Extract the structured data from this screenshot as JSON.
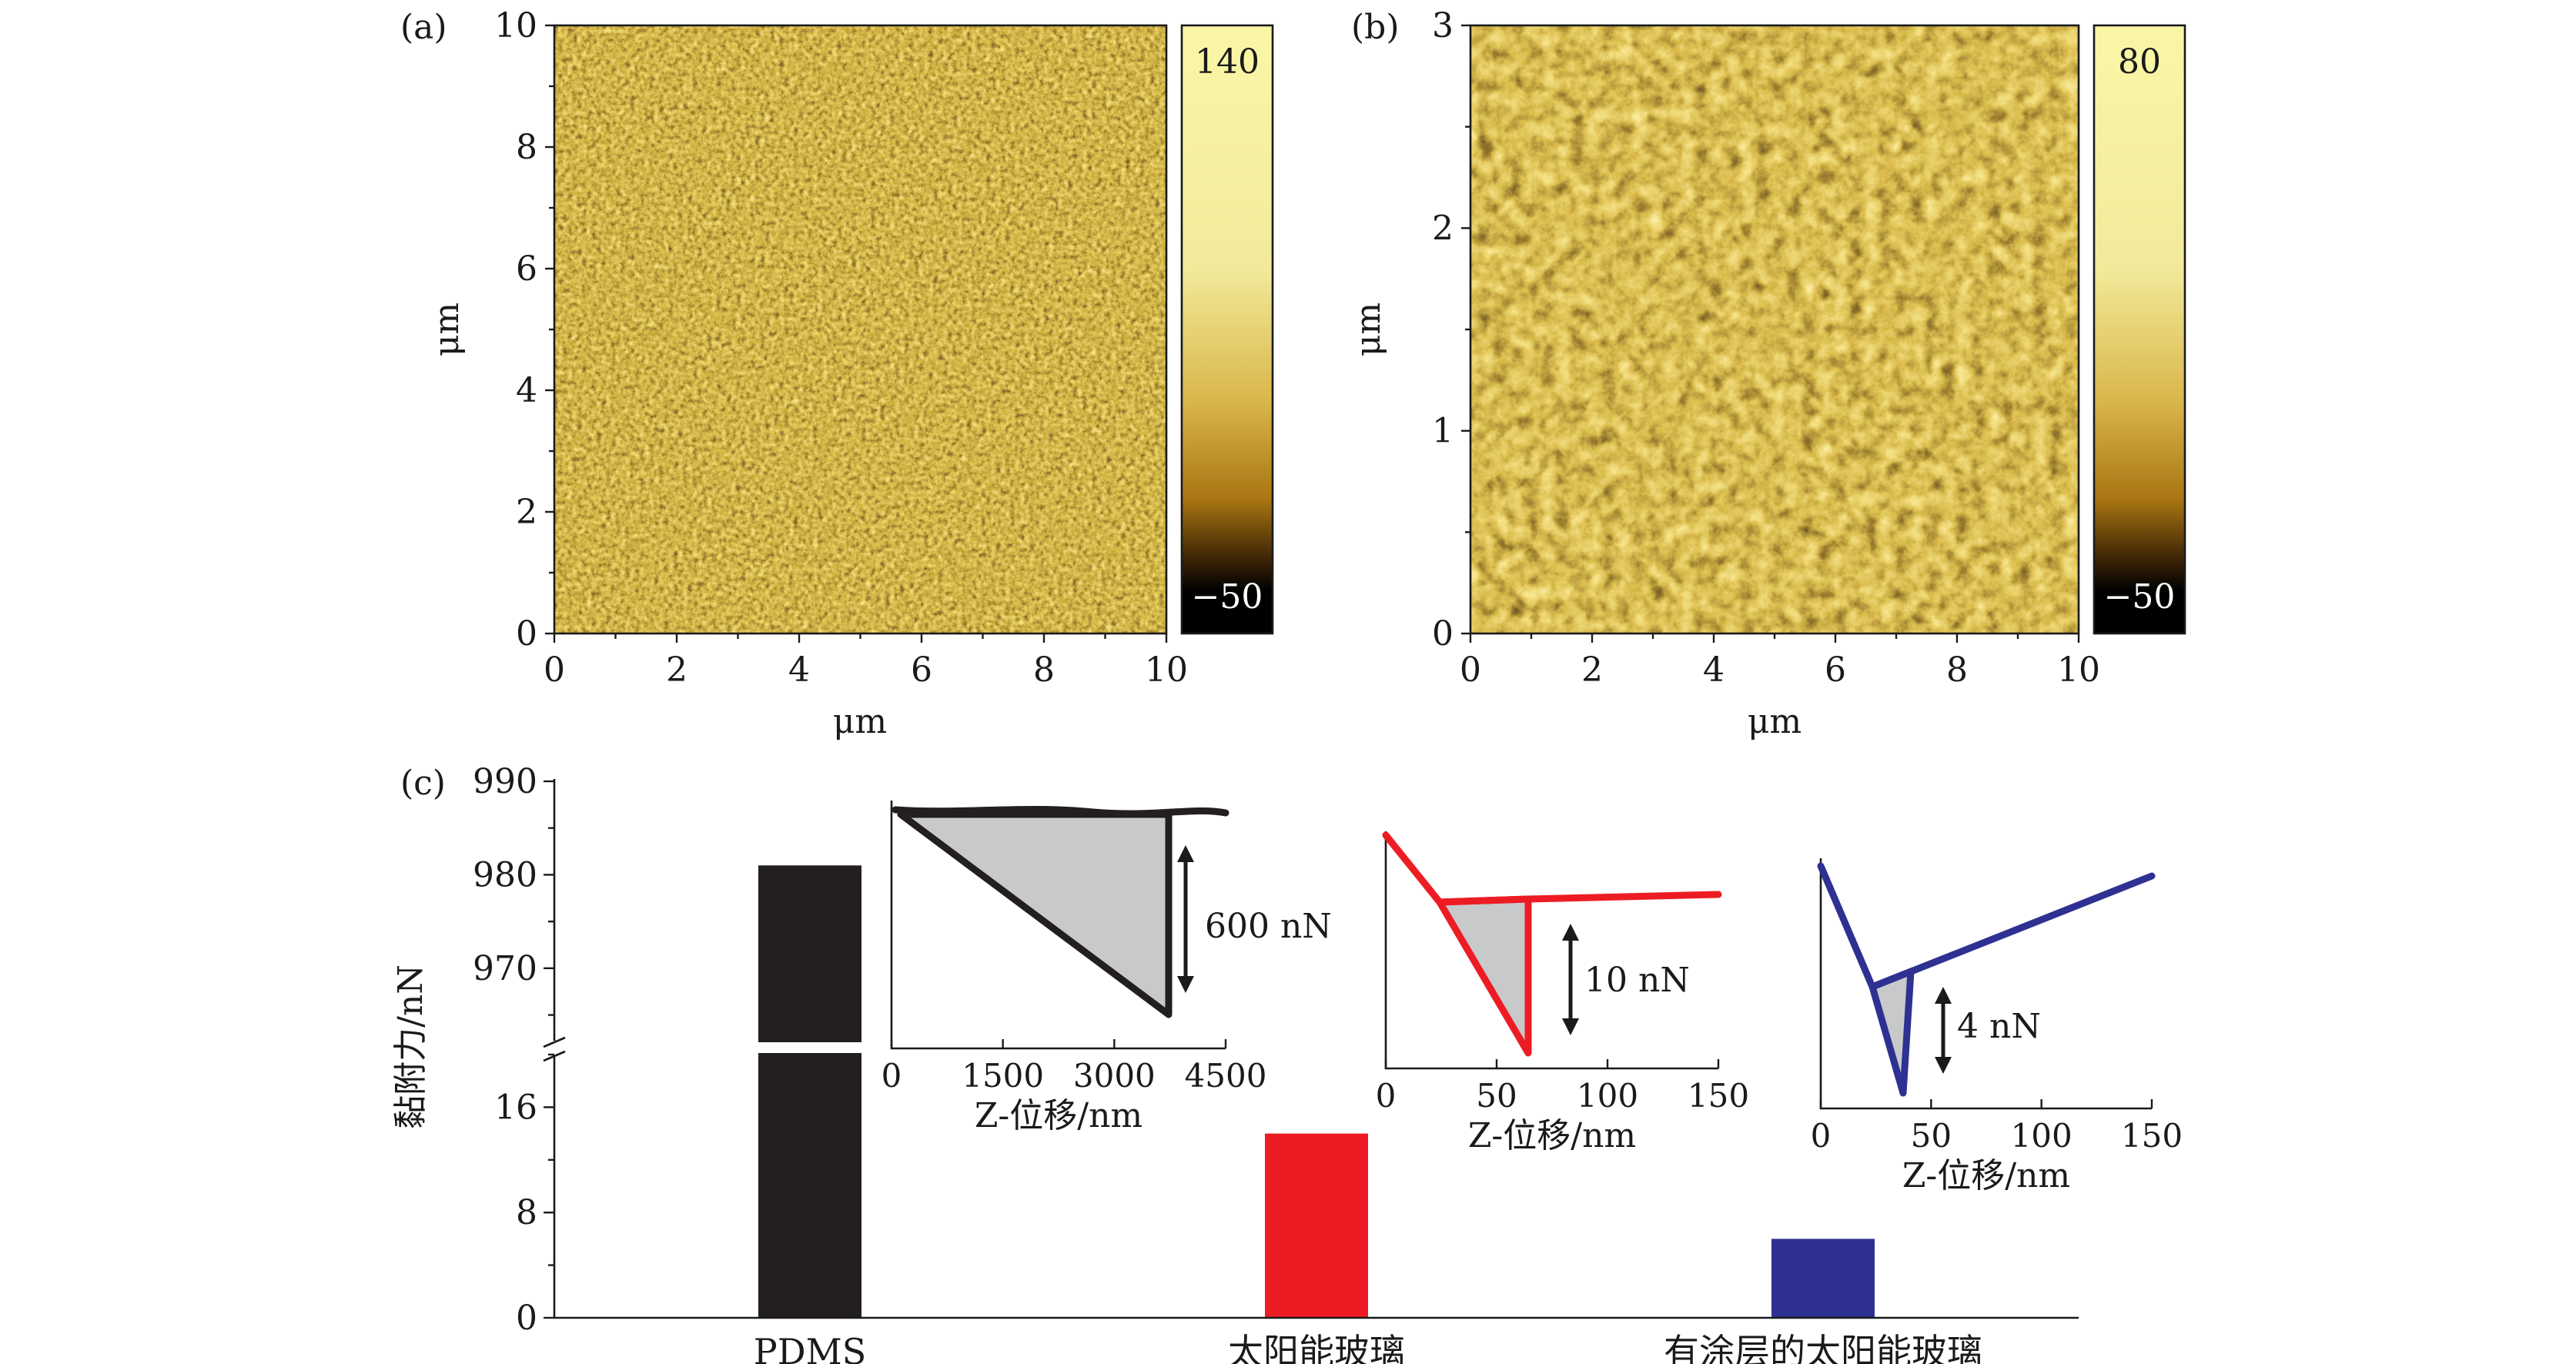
{
  "chart_data": [
    {
      "panel_label": "(a)",
      "type": "heatmap",
      "xlabel": "μm",
      "ylabel": "μm",
      "xlim": [
        0,
        10
      ],
      "ylim": [
        0,
        10
      ],
      "x_ticks": [
        "0",
        "2",
        "4",
        "6",
        "8",
        "10"
      ],
      "y_ticks": [
        "0",
        "2",
        "4",
        "6",
        "8",
        "10"
      ],
      "colorbar": {
        "max": "140",
        "min": "−50"
      },
      "colors": {
        "dark": "#1b0f03",
        "mid": "#b88414",
        "light": "#f6f5a2"
      }
    },
    {
      "panel_label": "(b)",
      "type": "heatmap",
      "xlabel": "μm",
      "ylabel": "μm",
      "xlim": [
        0,
        10
      ],
      "ylim": [
        0,
        3
      ],
      "x_ticks": [
        "0",
        "2",
        "4",
        "6",
        "8",
        "10"
      ],
      "y_ticks": [
        "0",
        "1",
        "2",
        "3"
      ],
      "colorbar": {
        "max": "80",
        "min": "−50"
      },
      "colors": {
        "dark": "#1b0f03",
        "mid": "#b88414",
        "light": "#f6f5a2"
      }
    },
    {
      "panel_label": "(c)",
      "type": "bar",
      "ylabel": "黏附力/nN",
      "categories": [
        "PDMS",
        "太阳能玻璃",
        "有涂层的太阳能玻璃"
      ],
      "values": [
        981,
        14,
        6
      ],
      "colors": [
        "#231f20",
        "#ed1c24",
        "#2e3192"
      ],
      "y_ticks_lower": [
        "0",
        "8",
        "16"
      ],
      "y_ticks_upper": [
        "970",
        "980",
        "990"
      ],
      "axis_break": [
        20,
        962
      ],
      "insets": [
        {
          "xlabel": "Z-位移/nm",
          "x_ticks": [
            "0",
            "1500",
            "3000",
            "4500"
          ],
          "xlim": [
            0,
            4500
          ],
          "annotation": "600 nN",
          "color": "#231f20"
        },
        {
          "xlabel": "Z-位移/nm",
          "x_ticks": [
            "0",
            "50",
            "100",
            "150"
          ],
          "xlim": [
            0,
            150
          ],
          "annotation": "10 nN",
          "color": "#ed1c24"
        },
        {
          "xlabel": "Z-位移/nm",
          "x_ticks": [
            "0",
            "50",
            "100",
            "150"
          ],
          "xlim": [
            0,
            150
          ],
          "annotation": "4 nN",
          "color": "#2e3192"
        }
      ]
    }
  ]
}
